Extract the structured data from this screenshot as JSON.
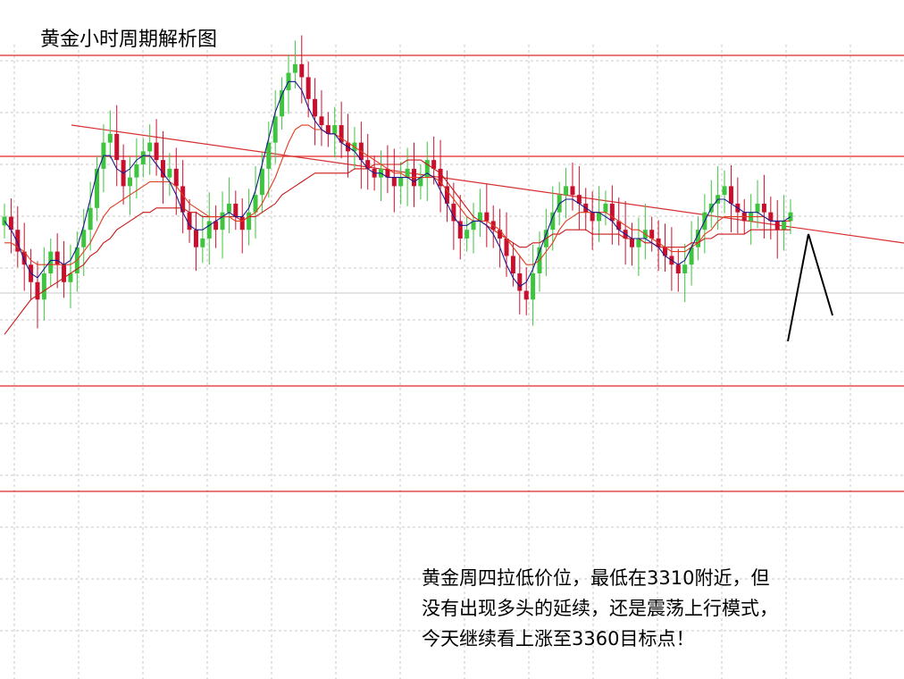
{
  "title": "黄金小时周期解析图",
  "note_lines": [
    "黄金周四拉低价位，最低在3310附近，但",
    "没有出现多头的延续，还是震荡上行模式，",
    "今天继续看上涨至3360目标点！"
  ],
  "colors": {
    "up_candle": "#3ec43e",
    "down_candle": "#c8102e",
    "ma_fast": "#1a1a8c",
    "ma_mid": "#e03c1e",
    "ma_slow": "#c81818",
    "level_line": "#e02828",
    "trend_line": "#d83030",
    "projection": "#000000",
    "grid": "#c8c8c8"
  },
  "chart_data": {
    "type": "candlestick",
    "grid": true,
    "y_range": [
      0,
      1
    ],
    "notes": "Values normalized 0 (bottom) to 1 (top) of price area; no axis labels shown.",
    "closes": [
      0.63,
      0.6,
      0.55,
      0.52,
      0.48,
      0.44,
      0.5,
      0.55,
      0.52,
      0.48,
      0.5,
      0.56,
      0.6,
      0.65,
      0.74,
      0.8,
      0.82,
      0.76,
      0.7,
      0.72,
      0.75,
      0.78,
      0.8,
      0.76,
      0.72,
      0.74,
      0.7,
      0.64,
      0.6,
      0.56,
      0.58,
      0.62,
      0.6,
      0.64,
      0.66,
      0.63,
      0.6,
      0.64,
      0.68,
      0.74,
      0.8,
      0.86,
      0.92,
      0.96,
      0.98,
      0.95,
      0.9,
      0.86,
      0.84,
      0.82,
      0.84,
      0.8,
      0.78,
      0.8,
      0.76,
      0.74,
      0.72,
      0.74,
      0.72,
      0.7,
      0.72,
      0.74,
      0.7,
      0.72,
      0.76,
      0.74,
      0.7,
      0.66,
      0.62,
      0.58,
      0.6,
      0.62,
      0.64,
      0.62,
      0.6,
      0.58,
      0.54,
      0.5,
      0.46,
      0.44,
      0.5,
      0.56,
      0.6,
      0.64,
      0.68,
      0.7,
      0.68,
      0.66,
      0.64,
      0.62,
      0.64,
      0.66,
      0.62,
      0.6,
      0.58,
      0.56,
      0.58,
      0.6,
      0.58,
      0.56,
      0.54,
      0.52,
      0.5,
      0.52,
      0.56,
      0.6,
      0.64,
      0.66,
      0.68,
      0.7,
      0.66,
      0.64,
      0.62,
      0.64,
      0.66,
      0.64,
      0.62,
      0.6,
      0.62,
      0.64
    ],
    "ma_fast": [
      0.62,
      0.6,
      0.57,
      0.53,
      0.5,
      0.49,
      0.51,
      0.53,
      0.53,
      0.52,
      0.53,
      0.56,
      0.61,
      0.67,
      0.73,
      0.77,
      0.77,
      0.74,
      0.73,
      0.74,
      0.76,
      0.77,
      0.77,
      0.75,
      0.73,
      0.71,
      0.68,
      0.64,
      0.61,
      0.6,
      0.6,
      0.61,
      0.62,
      0.63,
      0.64,
      0.63,
      0.63,
      0.65,
      0.69,
      0.75,
      0.81,
      0.87,
      0.91,
      0.94,
      0.94,
      0.92,
      0.88,
      0.85,
      0.83,
      0.82,
      0.82,
      0.8,
      0.79,
      0.78,
      0.76,
      0.74,
      0.73,
      0.73,
      0.72,
      0.72,
      0.72,
      0.72,
      0.71,
      0.72,
      0.73,
      0.72,
      0.69,
      0.66,
      0.63,
      0.61,
      0.61,
      0.62,
      0.62,
      0.61,
      0.59,
      0.56,
      0.52,
      0.49,
      0.47,
      0.48,
      0.51,
      0.55,
      0.59,
      0.63,
      0.66,
      0.67,
      0.67,
      0.66,
      0.65,
      0.64,
      0.64,
      0.63,
      0.62,
      0.6,
      0.59,
      0.58,
      0.58,
      0.58,
      0.57,
      0.56,
      0.54,
      0.53,
      0.52,
      0.53,
      0.56,
      0.59,
      0.62,
      0.65,
      0.67,
      0.67,
      0.66,
      0.65,
      0.64,
      0.64,
      0.64,
      0.63,
      0.62,
      0.62,
      0.62,
      0.63
    ],
    "ma_mid": [
      0.57,
      0.57,
      0.56,
      0.55,
      0.53,
      0.52,
      0.52,
      0.52,
      0.52,
      0.52,
      0.52,
      0.53,
      0.55,
      0.57,
      0.6,
      0.63,
      0.65,
      0.66,
      0.67,
      0.68,
      0.69,
      0.7,
      0.71,
      0.71,
      0.71,
      0.71,
      0.7,
      0.68,
      0.66,
      0.65,
      0.64,
      0.63,
      0.63,
      0.63,
      0.63,
      0.62,
      0.62,
      0.63,
      0.64,
      0.66,
      0.69,
      0.72,
      0.76,
      0.8,
      0.83,
      0.84,
      0.84,
      0.83,
      0.83,
      0.82,
      0.82,
      0.81,
      0.8,
      0.79,
      0.78,
      0.77,
      0.76,
      0.75,
      0.74,
      0.73,
      0.73,
      0.72,
      0.72,
      0.72,
      0.72,
      0.72,
      0.71,
      0.69,
      0.67,
      0.65,
      0.63,
      0.62,
      0.62,
      0.62,
      0.61,
      0.6,
      0.58,
      0.56,
      0.54,
      0.52,
      0.52,
      0.53,
      0.55,
      0.57,
      0.6,
      0.62,
      0.63,
      0.64,
      0.64,
      0.64,
      0.64,
      0.64,
      0.63,
      0.62,
      0.61,
      0.6,
      0.6,
      0.59,
      0.58,
      0.57,
      0.56,
      0.55,
      0.55,
      0.55,
      0.56,
      0.57,
      0.59,
      0.6,
      0.62,
      0.63,
      0.63,
      0.63,
      0.63,
      0.63,
      0.63,
      0.63,
      0.62,
      0.62,
      0.62,
      0.62
    ],
    "ma_slow": [
      0.36,
      0.38,
      0.4,
      0.42,
      0.44,
      0.45,
      0.46,
      0.47,
      0.48,
      0.49,
      0.5,
      0.51,
      0.52,
      0.54,
      0.55,
      0.57,
      0.58,
      0.6,
      0.61,
      0.62,
      0.63,
      0.64,
      0.64,
      0.65,
      0.65,
      0.65,
      0.65,
      0.65,
      0.64,
      0.64,
      0.63,
      0.63,
      0.63,
      0.63,
      0.63,
      0.63,
      0.62,
      0.63,
      0.63,
      0.64,
      0.65,
      0.66,
      0.68,
      0.69,
      0.7,
      0.71,
      0.72,
      0.73,
      0.73,
      0.73,
      0.73,
      0.73,
      0.73,
      0.74,
      0.74,
      0.74,
      0.75,
      0.75,
      0.75,
      0.75,
      0.75,
      0.76,
      0.76,
      0.76,
      0.75,
      0.74,
      0.73,
      0.71,
      0.69,
      0.67,
      0.65,
      0.63,
      0.62,
      0.61,
      0.6,
      0.59,
      0.58,
      0.57,
      0.56,
      0.56,
      0.57,
      0.57,
      0.58,
      0.59,
      0.59,
      0.6,
      0.6,
      0.6,
      0.6,
      0.59,
      0.59,
      0.59,
      0.59,
      0.59,
      0.58,
      0.58,
      0.58,
      0.57,
      0.57,
      0.56,
      0.56,
      0.56,
      0.56,
      0.56,
      0.57,
      0.57,
      0.58,
      0.58,
      0.59,
      0.59,
      0.59,
      0.59,
      0.59,
      0.6,
      0.6,
      0.6,
      0.6,
      0.6,
      0.6,
      0.6
    ]
  }
}
